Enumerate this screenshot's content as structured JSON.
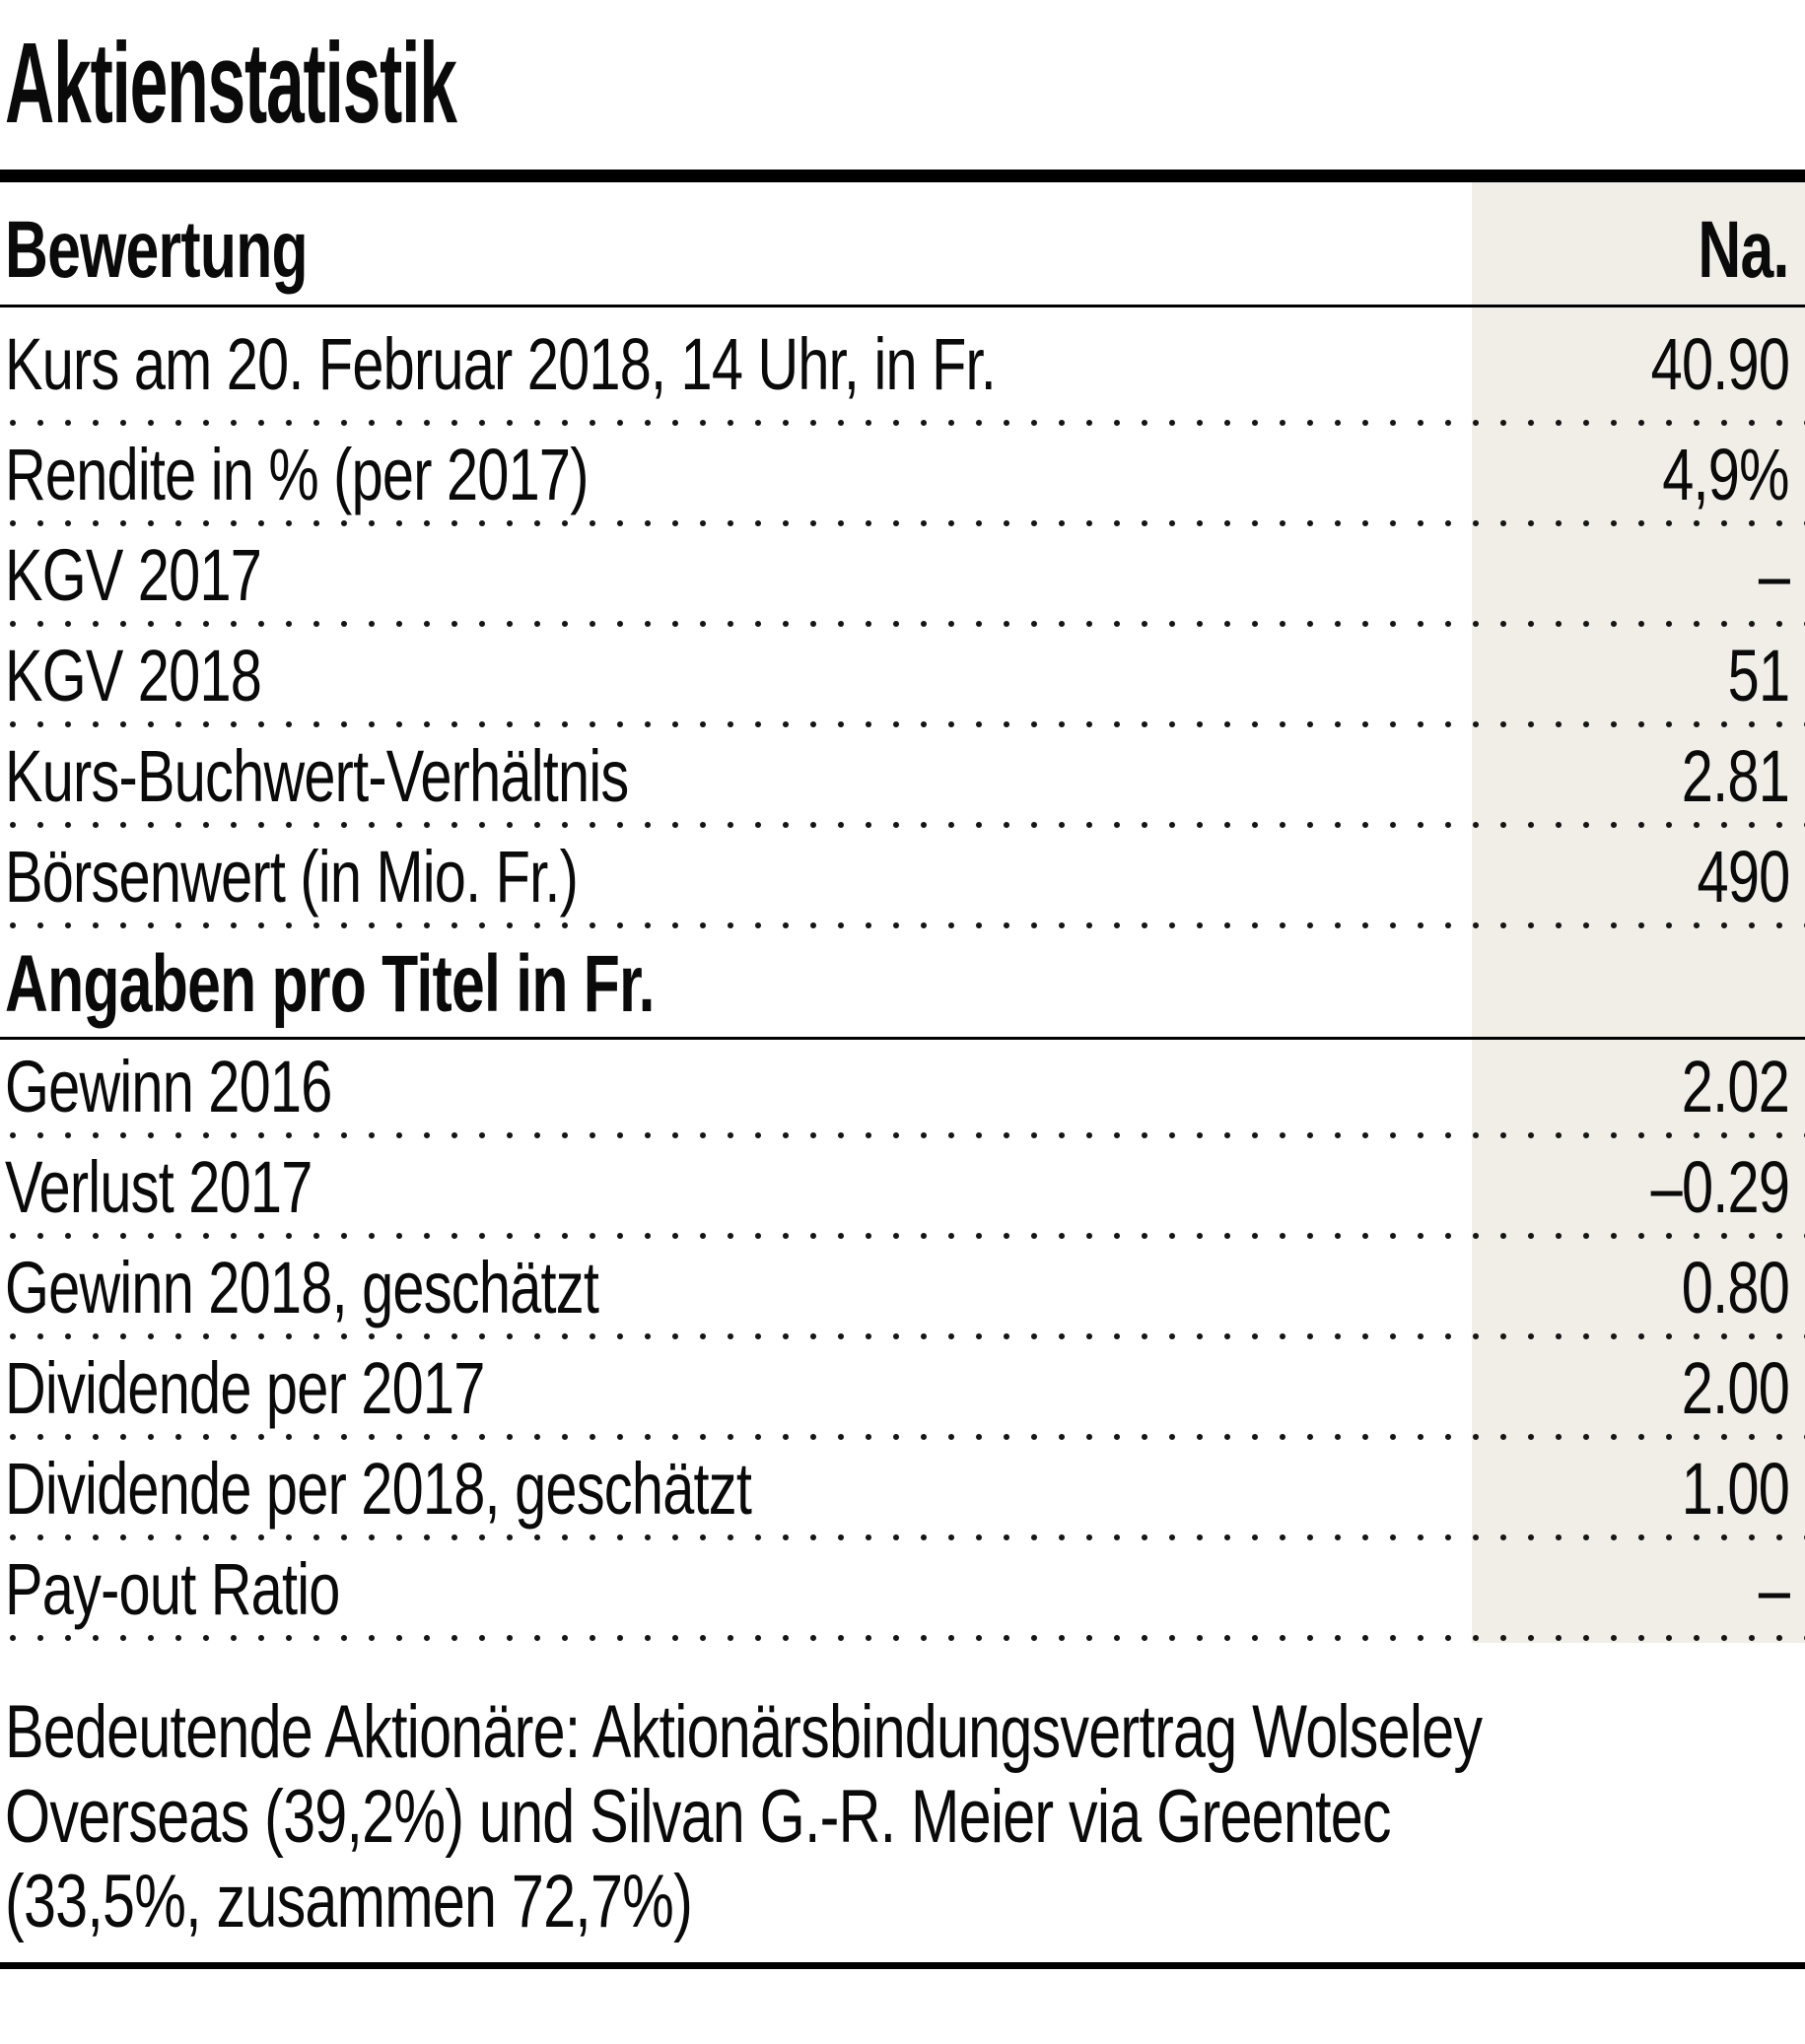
{
  "title": "Aktienstatistik",
  "table": {
    "sections": [
      {
        "header": "Bewertung",
        "value_header": "Na.",
        "rows": [
          {
            "label": "Kurs am 20. Februar 2018, 14 Uhr, in Fr.",
            "value": "40.90"
          },
          {
            "label": "Rendite in % (per 2017)",
            "value": "4,9%"
          },
          {
            "label": "KGV 2017",
            "value": "–"
          },
          {
            "label": "KGV 2018",
            "value": "51"
          },
          {
            "label": "Kurs-Buchwert-Verhältnis",
            "value": "2.81"
          },
          {
            "label": "Börsenwert (in Mio. Fr.)",
            "value": "490"
          }
        ]
      },
      {
        "header": "Angaben pro Titel in Fr.",
        "value_header": "",
        "rows": [
          {
            "label": "Gewinn 2016",
            "value": "2.02"
          },
          {
            "label": "Verlust 2017",
            "value": "–0.29"
          },
          {
            "label": "Gewinn 2018, geschätzt",
            "value": "0.80"
          },
          {
            "label": "Dividende per 2017",
            "value": "2.00"
          },
          {
            "label": "Dividende per 2018, geschätzt",
            "value": "1.00"
          },
          {
            "label": "Pay-out Ratio",
            "value": "–"
          }
        ]
      }
    ]
  },
  "footnote": {
    "lines": [
      "Bedeutende Aktionäre: Aktionärsbindungsvertrag Wolseley",
      "Overseas (39,2%) und Silvan G.-R. Meier via Greentec",
      "(33,5%, zusammen 72,7%)"
    ]
  },
  "colors": {
    "value_column_bg": "#F0EEE7",
    "rule": "#000000",
    "dot_leader": "#151515",
    "text": "#0A0A0A"
  }
}
